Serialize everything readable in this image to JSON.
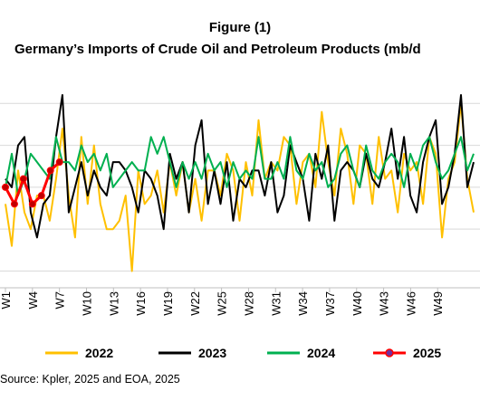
{
  "chart_data": {
    "type": "line",
    "title": "Figure (1)",
    "subtitle": "Germany’s Imports of Crude Oil and Petroleum Products (mb/d",
    "x_tick_labels": [
      "W1",
      "W4",
      "W7",
      "W10",
      "W13",
      "W16",
      "W19",
      "W22",
      "W25",
      "W28",
      "W31",
      "W34",
      "W37",
      "W40",
      "W43",
      "W46",
      "W49"
    ],
    "x_domain": [
      1,
      53
    ],
    "grid": "horizontal",
    "legend_position": "bottom",
    "source": "Source: Kpler, 2025 and  EOA, 2025",
    "series": [
      {
        "name": "2022",
        "color": "#FFC000",
        "values": [
          1.8,
          1.3,
          2.2,
          1.7,
          1.5,
          1.9,
          1.9,
          1.6,
          2.1,
          2.7,
          1.9,
          1.4,
          2.6,
          1.8,
          2.5,
          1.8,
          1.5,
          1.5,
          1.6,
          1.9,
          1.0,
          2.2,
          1.8,
          1.9,
          2.2,
          1.7,
          2.3,
          1.9,
          2.3,
          1.7,
          2.1,
          1.6,
          2.2,
          2.2,
          1.9,
          2.4,
          2.2,
          1.6,
          2.3,
          1.9,
          2.8,
          2.1,
          2.3,
          2.2,
          2.6,
          2.5,
          1.8,
          2.3,
          2.4,
          2.0,
          2.9,
          2.3,
          1.9,
          2.7,
          2.4,
          1.8,
          2.5,
          2.4,
          1.8,
          2.6,
          2.1,
          2.2,
          1.7,
          2.4,
          2.2,
          2.3,
          1.8,
          2.6,
          2.4,
          1.4,
          2.1,
          2.3,
          3.0,
          2.1,
          1.7
        ]
      },
      {
        "name": "2023",
        "color": "#000000",
        "values": [
          2.1,
          2.0,
          2.5,
          2.6,
          1.7,
          1.4,
          1.8,
          1.9,
          2.6,
          3.1,
          1.7,
          2.0,
          2.3,
          1.9,
          2.2,
          2.0,
          1.9,
          2.3,
          2.3,
          2.2,
          2.0,
          1.7,
          2.2,
          2.1,
          1.9,
          1.5,
          2.4,
          2.1,
          2.3,
          1.7,
          2.5,
          2.8,
          1.8,
          2.2,
          1.8,
          2.3,
          1.6,
          2.1,
          2.0,
          2.2,
          2.2,
          1.9,
          2.3,
          1.7,
          1.9,
          2.5,
          2.3,
          2.1,
          1.6,
          2.4,
          2.1,
          2.5,
          1.6,
          2.2,
          2.3,
          2.2,
          2.0,
          2.4,
          2.1,
          2.0,
          2.3,
          2.7,
          2.1,
          2.6,
          1.9,
          1.7,
          2.3,
          2.6,
          2.8,
          1.8,
          2.0,
          2.4,
          3.1,
          2.0,
          2.3
        ]
      },
      {
        "name": "2024",
        "color": "#00B050",
        "values": [
          2.0,
          2.4,
          1.9,
          2.1,
          2.4,
          2.3,
          2.2,
          2.1,
          2.6,
          2.3,
          2.3,
          2.2,
          2.5,
          2.3,
          2.4,
          2.2,
          2.4,
          2.0,
          2.1,
          2.2,
          2.3,
          2.2,
          2.2,
          2.6,
          2.4,
          2.6,
          2.3,
          2.0,
          2.3,
          2.1,
          2.3,
          2.1,
          2.4,
          2.2,
          2.3,
          2.0,
          2.3,
          2.1,
          2.2,
          2.1,
          2.6,
          2.1,
          2.1,
          2.3,
          2.1,
          2.6,
          2.2,
          2.1,
          2.4,
          2.2,
          2.3,
          2.0,
          2.1,
          2.4,
          2.5,
          2.2,
          2.0,
          2.5,
          2.2,
          2.1,
          2.3,
          2.4,
          2.3,
          2.0,
          2.4,
          2.2,
          2.5,
          2.6,
          2.3,
          2.1,
          2.2,
          2.4,
          2.6,
          2.2,
          2.4
        ]
      },
      {
        "name": "2025",
        "color": "#FF0000",
        "values": [
          2.0,
          1.8,
          2.1,
          1.8,
          1.9,
          2.2,
          2.3
        ]
      }
    ]
  }
}
